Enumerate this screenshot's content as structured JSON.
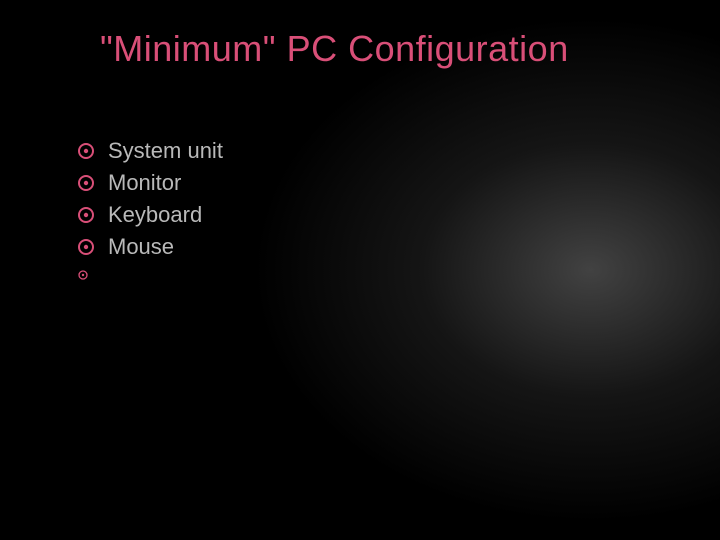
{
  "slide": {
    "title": "\"Minimum\" PC Configuration",
    "title_color": "#d94f78",
    "title_fontsize": 36,
    "text_color": "#b9b9b9",
    "text_fontsize": 22,
    "bullet_color": "#d94f78",
    "bullet_outer_r": 7,
    "bullet_inner_r": 2.2,
    "bullet_stroke": 2,
    "bullet_small_outer_r": 4,
    "bullet_small_inner_r": 1.2,
    "bullet_small_stroke": 1.3,
    "background_color": "#000000",
    "items": [
      {
        "label": "System unit"
      },
      {
        "label": "Monitor"
      },
      {
        "label": "Keyboard"
      },
      {
        "label": "Mouse"
      }
    ],
    "empty_sub_bullet": true
  }
}
